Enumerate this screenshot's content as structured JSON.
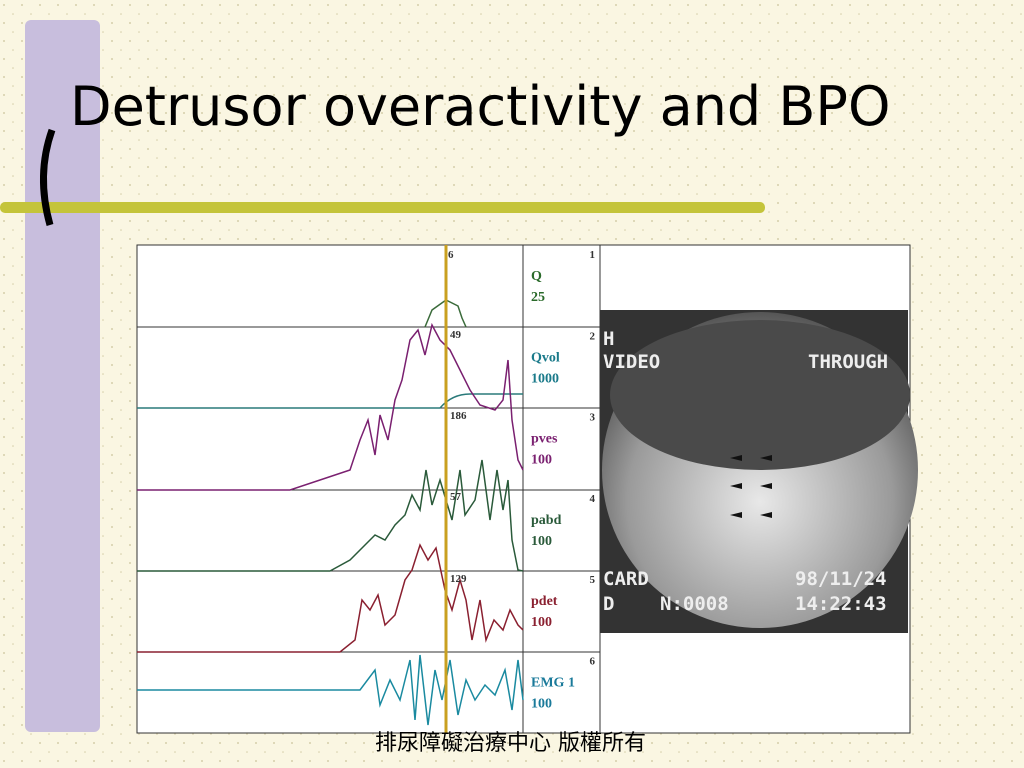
{
  "header": {
    "title": "Detrusor overactivity and BPO"
  },
  "channels": [
    {
      "number": "1",
      "name": "Q",
      "scale": "25"
    },
    {
      "number": "2",
      "name": "Qvol",
      "scale": "1000"
    },
    {
      "number": "3",
      "name": "pves",
      "scale": "100"
    },
    {
      "number": "4",
      "name": "pabd",
      "scale": "100"
    },
    {
      "number": "5",
      "name": "pdet",
      "scale": "100"
    },
    {
      "number": "6",
      "name": "EMG 1",
      "scale": "100"
    }
  ],
  "markers": [
    "6",
    "49",
    "186",
    "57",
    "129"
  ],
  "video": {
    "top_left": "H",
    "top_mid": "VIDEO",
    "top_right": "THROUGH",
    "bottom_left_1": "CARD",
    "bottom_left_2": "D",
    "counter": "N:0008",
    "date": "98/11/24",
    "time": "14:22:43"
  },
  "footer": "排尿障礙治療中心 版權所有"
}
